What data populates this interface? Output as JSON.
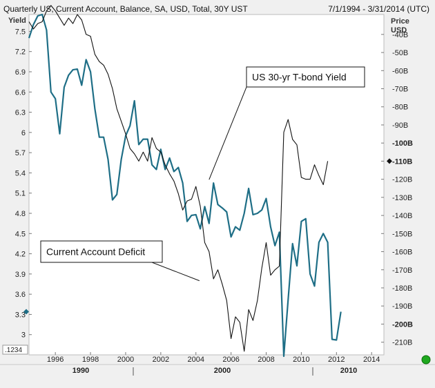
{
  "header": {
    "title": "Quarterly US, Current Account, Balance, SA, USD, Total, 30Y UST",
    "date_range": "7/1/1994 - 3/31/2014 (UTC)"
  },
  "chart_data": {
    "type": "line",
    "left_axis": {
      "label": "Yield",
      "ticks": [
        "7.5",
        "7.2",
        "6.9",
        "6.6",
        "6.3",
        "6",
        "5.7",
        "5.4",
        "5.1",
        "4.8",
        "4.5",
        "4.2",
        "3.9",
        "3.6",
        "3.3",
        "3"
      ],
      "range": [
        2.7,
        7.75
      ],
      "bottom_box_label": ".1234",
      "current_value": 3.34
    },
    "right_axis": {
      "label": "Price",
      "unit": "USD",
      "ticks": [
        "-40B",
        "-50B",
        "-60B",
        "-70B",
        "-80B",
        "-90B",
        "-100B",
        "-110B",
        "-120B",
        "-130B",
        "-140B",
        "-150B",
        "-160B",
        "-170B",
        "-180B",
        "-190B",
        "-200B",
        "-210B"
      ],
      "bold_ticks": [
        "-100B",
        "-110B",
        "-200B"
      ],
      "range": [
        -217,
        -29
      ],
      "marker_value": "-110B"
    },
    "x_axis": {
      "ticks": [
        "1996",
        "1998",
        "2000",
        "2002",
        "2004",
        "2006",
        "2008",
        "2010",
        "2012",
        "2014"
      ],
      "major_labels": [
        "1990",
        "2000",
        "2010"
      ],
      "range": [
        1994.5,
        2014.7
      ]
    },
    "series": [
      {
        "name": "US 30-yr T-bond Yield",
        "axis": "left",
        "color": "#1e6e86",
        "points": [
          [
            1994.5,
            7.4
          ],
          [
            1994.75,
            7.6
          ],
          [
            1995.0,
            7.73
          ],
          [
            1995.25,
            7.75
          ],
          [
            1995.5,
            7.52
          ],
          [
            1995.75,
            6.6
          ],
          [
            1996.0,
            6.5
          ],
          [
            1996.25,
            5.98
          ],
          [
            1996.5,
            6.67
          ],
          [
            1996.75,
            6.85
          ],
          [
            1997.0,
            6.93
          ],
          [
            1997.25,
            6.94
          ],
          [
            1997.5,
            6.7
          ],
          [
            1997.75,
            7.08
          ],
          [
            1998.0,
            6.9
          ],
          [
            1998.25,
            6.35
          ],
          [
            1998.5,
            5.93
          ],
          [
            1998.75,
            5.93
          ],
          [
            1999.0,
            5.6
          ],
          [
            1999.25,
            5.0
          ],
          [
            1999.5,
            5.08
          ],
          [
            1999.75,
            5.6
          ],
          [
            2000.0,
            5.95
          ],
          [
            2000.25,
            6.1
          ],
          [
            2000.5,
            6.47
          ],
          [
            2000.75,
            5.82
          ],
          [
            2001.0,
            5.9
          ],
          [
            2001.25,
            5.9
          ],
          [
            2001.5,
            5.52
          ],
          [
            2001.75,
            5.45
          ],
          [
            2002.0,
            5.75
          ],
          [
            2002.25,
            5.45
          ],
          [
            2002.5,
            5.62
          ],
          [
            2002.75,
            5.42
          ],
          [
            2003.0,
            5.48
          ],
          [
            2003.25,
            5.25
          ],
          [
            2003.5,
            4.68
          ],
          [
            2003.75,
            4.77
          ],
          [
            2004.0,
            4.78
          ],
          [
            2004.25,
            4.57
          ],
          [
            2004.5,
            4.9
          ],
          [
            2004.75,
            4.65
          ],
          [
            2005.0,
            5.25
          ],
          [
            2005.25,
            4.93
          ],
          [
            2005.5,
            4.88
          ],
          [
            2005.75,
            4.82
          ],
          [
            2006.0,
            4.45
          ],
          [
            2006.25,
            4.6
          ],
          [
            2006.5,
            4.55
          ],
          [
            2006.75,
            4.8
          ],
          [
            2007.0,
            5.17
          ],
          [
            2007.25,
            4.78
          ],
          [
            2007.5,
            4.8
          ],
          [
            2007.75,
            4.85
          ],
          [
            2008.0,
            5.02
          ],
          [
            2008.25,
            4.6
          ],
          [
            2008.5,
            4.32
          ],
          [
            2008.75,
            4.52
          ],
          [
            2009.0,
            2.68
          ],
          [
            2009.25,
            3.52
          ],
          [
            2009.5,
            4.35
          ],
          [
            2009.75,
            4.02
          ],
          [
            2010.0,
            4.68
          ],
          [
            2010.25,
            4.72
          ],
          [
            2010.5,
            3.9
          ],
          [
            2010.75,
            3.72
          ],
          [
            2011.0,
            4.37
          ],
          [
            2011.25,
            4.5
          ],
          [
            2011.5,
            4.37
          ],
          [
            2011.75,
            2.93
          ],
          [
            2012.0,
            2.92
          ],
          [
            2012.25,
            3.34
          ]
        ]
      },
      {
        "name": "Current Account Deficit",
        "axis": "right",
        "color": "#111111",
        "points": [
          [
            1994.5,
            -33
          ],
          [
            1994.75,
            -37
          ],
          [
            1995.0,
            -34
          ],
          [
            1995.25,
            -33
          ],
          [
            1995.5,
            -27
          ],
          [
            1995.75,
            -24
          ],
          [
            1996.0,
            -27
          ],
          [
            1996.25,
            -31
          ],
          [
            1996.5,
            -35
          ],
          [
            1996.75,
            -31
          ],
          [
            1997.0,
            -34
          ],
          [
            1997.25,
            -29
          ],
          [
            1997.5,
            -32
          ],
          [
            1997.75,
            -40
          ],
          [
            1998.0,
            -41
          ],
          [
            1998.25,
            -51
          ],
          [
            1998.5,
            -55
          ],
          [
            1998.75,
            -57
          ],
          [
            1999.0,
            -62
          ],
          [
            1999.25,
            -70
          ],
          [
            1999.5,
            -81
          ],
          [
            1999.75,
            -88
          ],
          [
            2000.0,
            -95
          ],
          [
            2000.25,
            -103
          ],
          [
            2000.5,
            -106
          ],
          [
            2000.75,
            -110
          ],
          [
            2001.0,
            -105
          ],
          [
            2001.25,
            -110
          ],
          [
            2001.5,
            -97
          ],
          [
            2001.75,
            -103
          ],
          [
            2002.0,
            -105
          ],
          [
            2002.25,
            -112
          ],
          [
            2002.5,
            -117
          ],
          [
            2002.75,
            -121
          ],
          [
            2003.0,
            -128
          ],
          [
            2003.25,
            -137
          ],
          [
            2003.5,
            -132
          ],
          [
            2003.75,
            -131
          ],
          [
            2004.0,
            -124
          ],
          [
            2004.25,
            -135
          ],
          [
            2004.5,
            -155
          ],
          [
            2004.75,
            -160
          ],
          [
            2005.0,
            -175
          ],
          [
            2005.25,
            -170
          ],
          [
            2005.5,
            -178
          ],
          [
            2005.75,
            -187
          ],
          [
            2006.0,
            -208
          ],
          [
            2006.25,
            -196
          ],
          [
            2006.5,
            -199
          ],
          [
            2006.75,
            -215
          ],
          [
            2007.0,
            -192
          ],
          [
            2007.25,
            -198
          ],
          [
            2007.5,
            -187
          ],
          [
            2007.75,
            -169
          ],
          [
            2008.0,
            -155
          ],
          [
            2008.25,
            -173
          ],
          [
            2008.5,
            -170
          ],
          [
            2008.75,
            -168
          ],
          [
            2009.0,
            -94
          ],
          [
            2009.25,
            -87
          ],
          [
            2009.5,
            -98
          ],
          [
            2009.75,
            -101
          ],
          [
            2010.0,
            -119
          ],
          [
            2010.25,
            -120
          ],
          [
            2010.5,
            -120
          ],
          [
            2010.75,
            -112
          ],
          [
            2011.0,
            -118
          ],
          [
            2011.25,
            -123
          ],
          [
            2011.5,
            -110
          ]
        ]
      }
    ],
    "annotations": [
      {
        "text": "US 30-yr T-bond Yield",
        "arrow_to": [
          2004.75,
          5.3
        ]
      },
      {
        "text": "Current Account Deficit",
        "arrow_to": [
          2004.2,
          3.8
        ]
      }
    ],
    "legend": "none",
    "grid": false
  }
}
